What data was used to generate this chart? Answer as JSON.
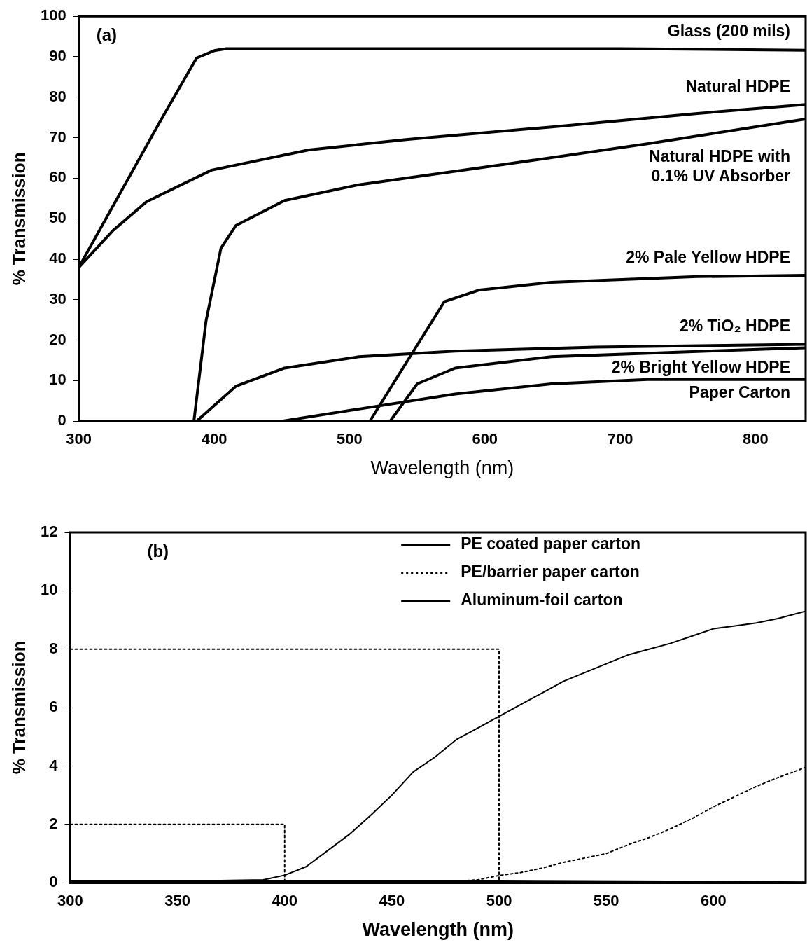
{
  "chart_data": [
    {
      "type": "line",
      "xlabel": "Wavelength (nm)",
      "ylabel": "% Transmission",
      "annotations": [
        "(a)"
      ],
      "legend": false,
      "grid": false,
      "xlim": [
        300,
        837
      ],
      "ylim": [
        0,
        100
      ],
      "xticks": [
        300,
        400,
        500,
        600,
        700,
        800
      ],
      "yticks": [
        0,
        10,
        20,
        30,
        40,
        50,
        60,
        70,
        80,
        90,
        100
      ],
      "series": [
        {
          "name": "Glass (200 mils)",
          "color": "#000000",
          "x": [
            300,
            330,
            360,
            387,
            400,
            409,
            500,
            600,
            700,
            837
          ],
          "values": [
            38,
            56,
            74,
            89.7,
            91.5,
            92,
            92,
            92,
            92,
            91.6
          ]
        },
        {
          "name": "Natural HDPE",
          "color": "#000000",
          "x": [
            300,
            325,
            350,
            398,
            470,
            543,
            651,
            757,
            837
          ],
          "values": [
            38,
            47,
            54.2,
            62,
            67,
            69.6,
            72.7,
            76,
            78.2
          ]
        },
        {
          "name": "Natural HDPE with 0.1% UV Absorber",
          "color": "#000000",
          "x": [
            385,
            394,
            405,
            416,
            452,
            507,
            614,
            720,
            837
          ],
          "values": [
            0,
            24.8,
            42.7,
            48.3,
            54.5,
            58.4,
            63.4,
            68.5,
            74.6
          ]
        },
        {
          "name": "2% Pale Yellow HDPE",
          "color": "#000000",
          "x": [
            515,
            570,
            596,
            649,
            757,
            837
          ],
          "values": [
            0,
            29.5,
            32.4,
            34.3,
            35.7,
            36
          ]
        },
        {
          "name": "2% TiO₂ HDPE",
          "color": "#000000",
          "x": [
            387,
            416,
            452,
            507,
            578,
            682,
            837
          ],
          "values": [
            0,
            8.6,
            13.1,
            15.9,
            17.3,
            18.3,
            19
          ]
        },
        {
          "name": "2% Bright Yellow HDPE",
          "color": "#000000",
          "x": [
            530,
            550,
            578,
            649,
            757,
            837
          ],
          "values": [
            0,
            9.2,
            13.1,
            15.9,
            17.2,
            18.1
          ]
        },
        {
          "name": "Paper Carton",
          "color": "#000000",
          "x": [
            450,
            507,
            578,
            649,
            720,
            837
          ],
          "values": [
            0,
            3,
            6.7,
            9.2,
            10.3,
            10.3
          ]
        }
      ]
    },
    {
      "type": "line",
      "xlabel": "Wavelength (nm)",
      "ylabel": "% Transmission",
      "annotations": [
        "(b)"
      ],
      "legend": "top",
      "grid": false,
      "xlim": [
        300,
        643
      ],
      "ylim": [
        0,
        12
      ],
      "xticks": [
        300,
        350,
        400,
        450,
        500,
        550,
        600
      ],
      "yticks": [
        0,
        2,
        4,
        6,
        8,
        10,
        12
      ],
      "series": [
        {
          "name": "PE coated paper carton",
          "color": "#000000",
          "line_style": "solid",
          "x": [
            300,
            350,
            390,
            400,
            410,
            420,
            430,
            440,
            450,
            460,
            470,
            480,
            490,
            500,
            510,
            520,
            530,
            540,
            550,
            560,
            570,
            580,
            590,
            600,
            610,
            620,
            630,
            643
          ],
          "values": [
            0.05,
            0.05,
            0.1,
            0.26,
            0.55,
            1.1,
            1.65,
            2.3,
            3,
            3.8,
            4.3,
            4.9,
            5.3,
            5.7,
            6.1,
            6.5,
            6.9,
            7.2,
            7.5,
            7.8,
            8,
            8.2,
            8.45,
            8.7,
            8.8,
            8.9,
            9.05,
            9.3
          ]
        },
        {
          "name": "PE/barrier paper carton",
          "color": "#000000",
          "line_style": "dotted",
          "x": [
            300,
            400,
            480,
            490,
            500,
            510,
            520,
            530,
            540,
            550,
            560,
            570,
            580,
            590,
            600,
            610,
            620,
            630,
            643
          ],
          "values": [
            0,
            0,
            0.05,
            0.1,
            0.25,
            0.35,
            0.5,
            0.7,
            0.85,
            1,
            1.3,
            1.55,
            1.85,
            2.2,
            2.6,
            2.95,
            3.3,
            3.6,
            3.95
          ]
        },
        {
          "name": "Aluminum-foil carton",
          "color": "#000000",
          "line_style": "solid",
          "x": [
            300,
            400,
            500,
            600,
            643
          ],
          "values": [
            0.05,
            0.05,
            0.05,
            0.02,
            0
          ]
        },
        {
          "color": "#000000",
          "line_style": "dotted",
          "x": [
            300,
            400,
            400
          ],
          "values": [
            2,
            2,
            0
          ]
        },
        {
          "color": "#000000",
          "line_style": "dotted",
          "x": [
            300,
            500,
            500
          ],
          "values": [
            8,
            8,
            0
          ]
        }
      ]
    }
  ]
}
